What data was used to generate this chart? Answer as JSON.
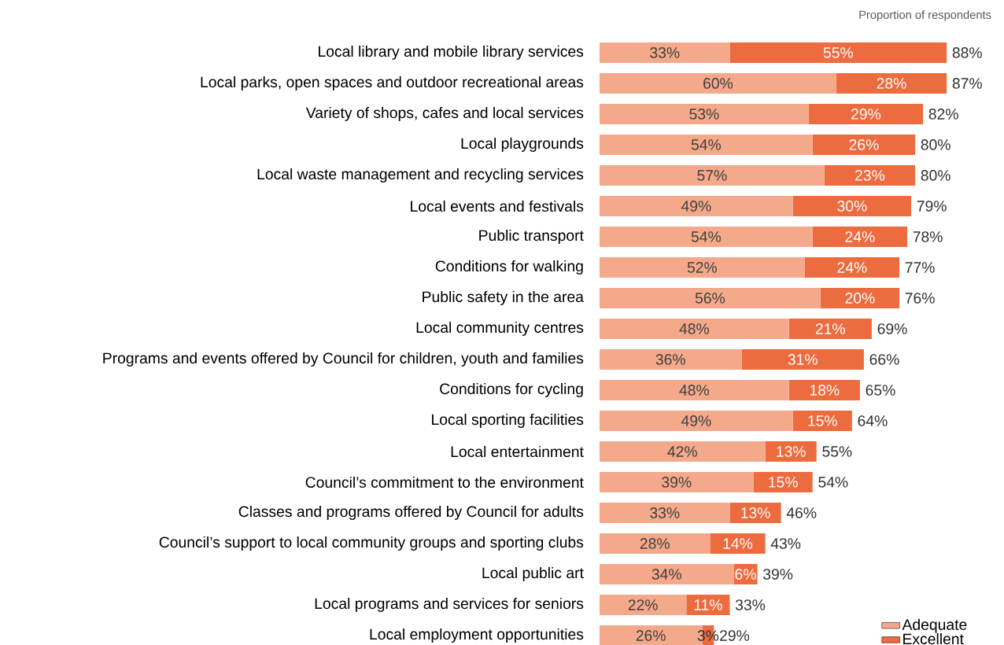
{
  "chart_data": {
    "type": "bar",
    "orientation": "horizontal",
    "stacked": true,
    "legend": "bottom right",
    "annotations": [
      "Proportion of respondents"
    ],
    "categories": [
      "Local library and mobile library services",
      "Local parks, open spaces and outdoor recreational areas",
      "Variety of shops, cafes and local services",
      "Local playgrounds",
      "Local waste management and recycling services",
      "Local events and festivals",
      "Public transport",
      "Conditions for walking",
      "Public safety in the area",
      "Local community centres",
      "Programs and events offered by Council for children, youth and families",
      "Conditions for cycling",
      "Local sporting facilities",
      "Local entertainment",
      "Council’s commitment to the environment",
      "Classes and programs offered by Council for adults",
      "Council’s support to local community groups and sporting clubs",
      "Local public art",
      "Local programs and services for seniors",
      "Local employment opportunities"
    ],
    "series": [
      {
        "name": "Adequate",
        "color": "#f4a98a",
        "values": [
          33,
          60,
          53,
          54,
          57,
          49,
          54,
          52,
          56,
          48,
          36,
          48,
          49,
          42,
          39,
          33,
          28,
          34,
          22,
          26
        ],
        "value_labels": [
          "33%",
          "60%",
          "53%",
          "54%",
          "57%",
          "49%",
          "54%",
          "52%",
          "56%",
          "48%",
          "36%",
          "48%",
          "49%",
          "42%",
          "39%",
          "33%",
          "28%",
          "34%",
          "22%",
          "26%"
        ]
      },
      {
        "name": "Excellent",
        "color": "#ec6b3f",
        "values": [
          55,
          28,
          29,
          26,
          23,
          30,
          24,
          24,
          20,
          21,
          31,
          18,
          15,
          13,
          15,
          13,
          14,
          6,
          11,
          3
        ],
        "value_labels": [
          "55%",
          "28%",
          "29%",
          "26%",
          "23%",
          "30%",
          "24%",
          "24%",
          "20%",
          "21%",
          "31%",
          "18%",
          "15%",
          "13%",
          "15%",
          "13%",
          "14%",
          "6%",
          "11%",
          "3%"
        ]
      }
    ],
    "totals": [
      "88%",
      "87%",
      "82%",
      "80%",
      "80%",
      "79%",
      "78%",
      "77%",
      "76%",
      "69%",
      "66%",
      "65%",
      "64%",
      "55%",
      "54%",
      "46%",
      "43%",
      "39%",
      "33%",
      "29%"
    ]
  }
}
